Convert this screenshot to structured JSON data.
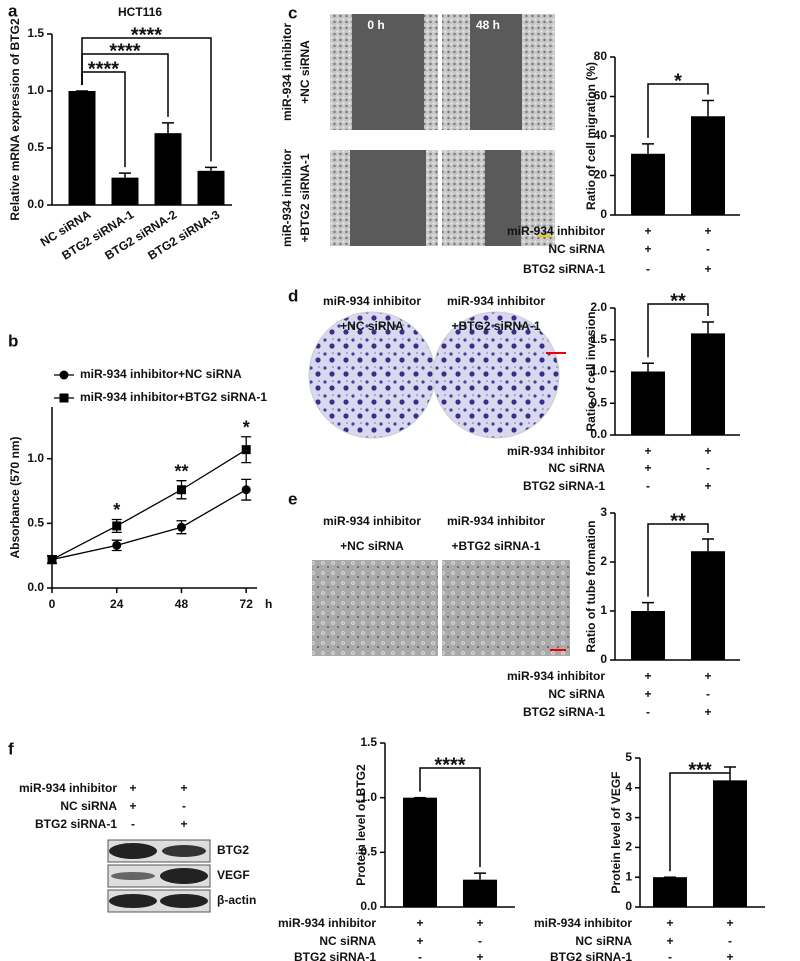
{
  "chart_data": [
    {
      "type": "bar",
      "panel": "a",
      "title": "HCT116",
      "ylabel": "Relative mRNA expression of BTG2",
      "categories": [
        "NC siRNA",
        "BTG2 siRNA-1",
        "BTG2 siRNA-2",
        "BTG2 siRNA-3"
      ],
      "values": [
        1.0,
        0.24,
        0.63,
        0.3
      ],
      "errors": [
        0,
        0.04,
        0.09,
        0.03
      ],
      "color": "#000000",
      "ylim": [
        0,
        1.5
      ],
      "yticks": [
        {
          "value": 0,
          "label": "0.0"
        },
        0.5,
        {
          "value": 1,
          "label": "1.0"
        },
        1.5
      ],
      "annotations": [
        "****",
        "****",
        "****"
      ]
    },
    {
      "type": "line",
      "panel": "b",
      "ylabel": "Absorbance (570 nm)",
      "xlabel": "h",
      "x": [
        0,
        24,
        48,
        72
      ],
      "xlim": [
        0,
        76
      ],
      "xticks": [
        0,
        24,
        48,
        72
      ],
      "ylim": [
        0,
        1.4
      ],
      "yticks": [
        {
          "value": 0,
          "label": "0.0"
        },
        0.5,
        {
          "value": 1,
          "label": "1.0"
        }
      ],
      "series": [
        {
          "name": "miR-934 inhibitor+NC siRNA",
          "color": "#000000",
          "marker": "circle",
          "values": [
            0.22,
            0.33,
            0.47,
            0.76
          ],
          "errors": [
            0.03,
            0.04,
            0.05,
            0.08
          ]
        },
        {
          "name": "miR-934 inhibitor+BTG2 siRNA-1",
          "color": "#000000",
          "marker": "square",
          "values": [
            0.22,
            0.48,
            0.76,
            1.07
          ],
          "errors": [
            0.03,
            0.05,
            0.07,
            0.1
          ]
        }
      ],
      "annotations": [
        "*",
        "**",
        "*"
      ]
    },
    {
      "type": "bar",
      "panel": "c",
      "ylabel": "Ratio of cell migration (%)",
      "column_labels": [
        "0 h",
        "48 h"
      ],
      "row_labels": [
        [
          "miR-934 inhibitor",
          "+NC siRNA"
        ],
        [
          "miR-934 inhibitor",
          "+BTG2 siRNA-1"
        ]
      ],
      "values": [
        31,
        50
      ],
      "errors": [
        5,
        8
      ],
      "color": "#000000",
      "ylim": [
        0,
        80
      ],
      "yticks": [
        0,
        20,
        40,
        60,
        80
      ],
      "conditions": [
        {
          "label": "miR-934 inhibitor",
          "values": [
            "+",
            "+"
          ]
        },
        {
          "label": "NC siRNA",
          "values": [
            "+",
            "-"
          ]
        },
        {
          "label": "BTG2 siRNA-1",
          "values": [
            "-",
            "+"
          ]
        }
      ],
      "annotations": [
        "*"
      ]
    },
    {
      "type": "bar",
      "panel": "d",
      "ylabel": "Ratio of cell invasion",
      "image_labels": [
        [
          "miR-934 inhibitor",
          "+NC siRNA"
        ],
        [
          "miR-934 inhibitor",
          "+BTG2 siRNA-1"
        ]
      ],
      "values": [
        1.0,
        1.6
      ],
      "errors": [
        0.13,
        0.18
      ],
      "color": "#000000",
      "ylim": [
        0,
        2
      ],
      "yticks": [
        {
          "value": 0,
          "label": "0.0"
        },
        0.5,
        {
          "value": 1,
          "label": "1.0"
        },
        1.5,
        {
          "value": 2,
          "label": "2.0"
        }
      ],
      "conditions": [
        {
          "label": "miR-934 inhibitor",
          "values": [
            "+",
            "+"
          ]
        },
        {
          "label": "NC siRNA",
          "values": [
            "+",
            "-"
          ]
        },
        {
          "label": "BTG2 siRNA-1",
          "values": [
            "-",
            "+"
          ]
        }
      ],
      "annotations": [
        "**"
      ]
    },
    {
      "type": "bar",
      "panel": "e",
      "ylabel": "Ratio of tube formation",
      "image_labels": [
        [
          "miR-934 inhibitor",
          "+NC siRNA"
        ],
        [
          "miR-934 inhibitor",
          "+BTG2 siRNA-1"
        ]
      ],
      "values": [
        1.0,
        2.22
      ],
      "errors": [
        0.17,
        0.25
      ],
      "color": "#000000",
      "ylim": [
        0,
        3
      ],
      "yticks": [
        0,
        1,
        2,
        3
      ],
      "conditions": [
        {
          "label": "miR-934 inhibitor",
          "values": [
            "+",
            "+"
          ]
        },
        {
          "label": "NC siRNA",
          "values": [
            "+",
            "-"
          ]
        },
        {
          "label": "BTG2 siRNA-1",
          "values": [
            "-",
            "+"
          ]
        }
      ],
      "annotations": [
        "**"
      ]
    },
    {
      "type": "bar",
      "ylabel": "Protein level of BTG2",
      "values": [
        1.0,
        0.25
      ],
      "errors": [
        0,
        0.06
      ],
      "color": "#000000",
      "ylim": [
        0,
        1.5
      ],
      "yticks": [
        {
          "value": 0,
          "label": "0.0"
        },
        0.5,
        {
          "value": 1,
          "label": "1.0"
        },
        1.5
      ],
      "conditions": [
        {
          "label": "miR-934 inhibitor",
          "values": [
            "+",
            "+"
          ]
        },
        {
          "label": "NC siRNA",
          "values": [
            "+",
            "-"
          ]
        },
        {
          "label": "BTG2 siRNA-1",
          "values": [
            "-",
            "+"
          ]
        }
      ],
      "annotations": [
        "****"
      ]
    },
    {
      "type": "bar",
      "ylabel": "Protein level of VEGF",
      "values": [
        1,
        4.25
      ],
      "errors": [
        0,
        0.45
      ],
      "color": "#000000",
      "ylim": [
        0,
        5
      ],
      "yticks": [
        0,
        1,
        2,
        3,
        4,
        5
      ],
      "conditions": [
        {
          "label": "miR-934 inhibitor",
          "values": [
            "+",
            "+"
          ]
        },
        {
          "label": "NC siRNA",
          "values": [
            "+",
            "-"
          ]
        },
        {
          "label": "BTG2 siRNA-1",
          "values": [
            "-",
            "+"
          ]
        }
      ],
      "annotations": [
        "***"
      ]
    }
  ],
  "blot": {
    "panel": "f",
    "conditions": [
      {
        "label": "miR-934 inhibitor",
        "values": [
          "+",
          "+"
        ]
      },
      {
        "label": "NC siRNA",
        "values": [
          "+",
          "-"
        ]
      },
      {
        "label": "BTG2 siRNA-1",
        "values": [
          "-",
          "+"
        ]
      }
    ],
    "bands": [
      "BTG2",
      "VEGF",
      "β-actin"
    ]
  }
}
